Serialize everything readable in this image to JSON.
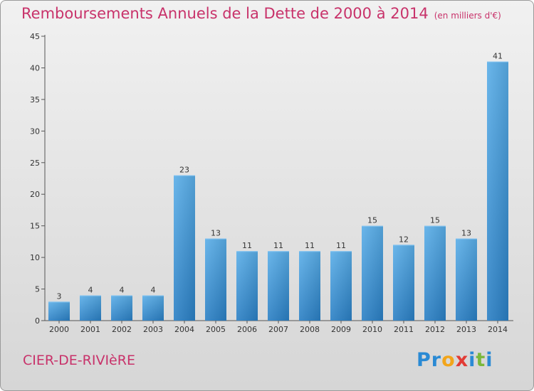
{
  "header": {
    "title": "Remboursements Annuels de la Dette de 2000 à 2014",
    "subtitle": "(en milliers d'€)"
  },
  "footer": {
    "commune": "CIER-DE-RIVIèRE",
    "logo": {
      "letters": [
        "P",
        "r",
        "o",
        "x",
        "i",
        "t",
        "i"
      ],
      "colors": [
        "#2a8ad4",
        "#2a8ad4",
        "#f2a51a",
        "#e23b35",
        "#2a8ad4",
        "#7ab83b",
        "#2a8ad4"
      ]
    }
  },
  "chart_data": {
    "type": "bar",
    "title": "Remboursements Annuels de la Dette de 2000 à 2014",
    "subtitle": "(en milliers d'€)",
    "categories": [
      "2000",
      "2001",
      "2002",
      "2003",
      "2004",
      "2005",
      "2006",
      "2007",
      "2008",
      "2009",
      "2010",
      "2011",
      "2012",
      "2013",
      "2014"
    ],
    "values": [
      3,
      4,
      4,
      4,
      23,
      13,
      11,
      11,
      11,
      11,
      15,
      12,
      15,
      13,
      41
    ],
    "yticks": [
      0,
      5,
      10,
      15,
      20,
      25,
      30,
      35,
      40,
      45
    ],
    "ylim": [
      0,
      45
    ],
    "grid": false,
    "bar_color": "#3d93d9",
    "xlabel": "",
    "ylabel": ""
  }
}
